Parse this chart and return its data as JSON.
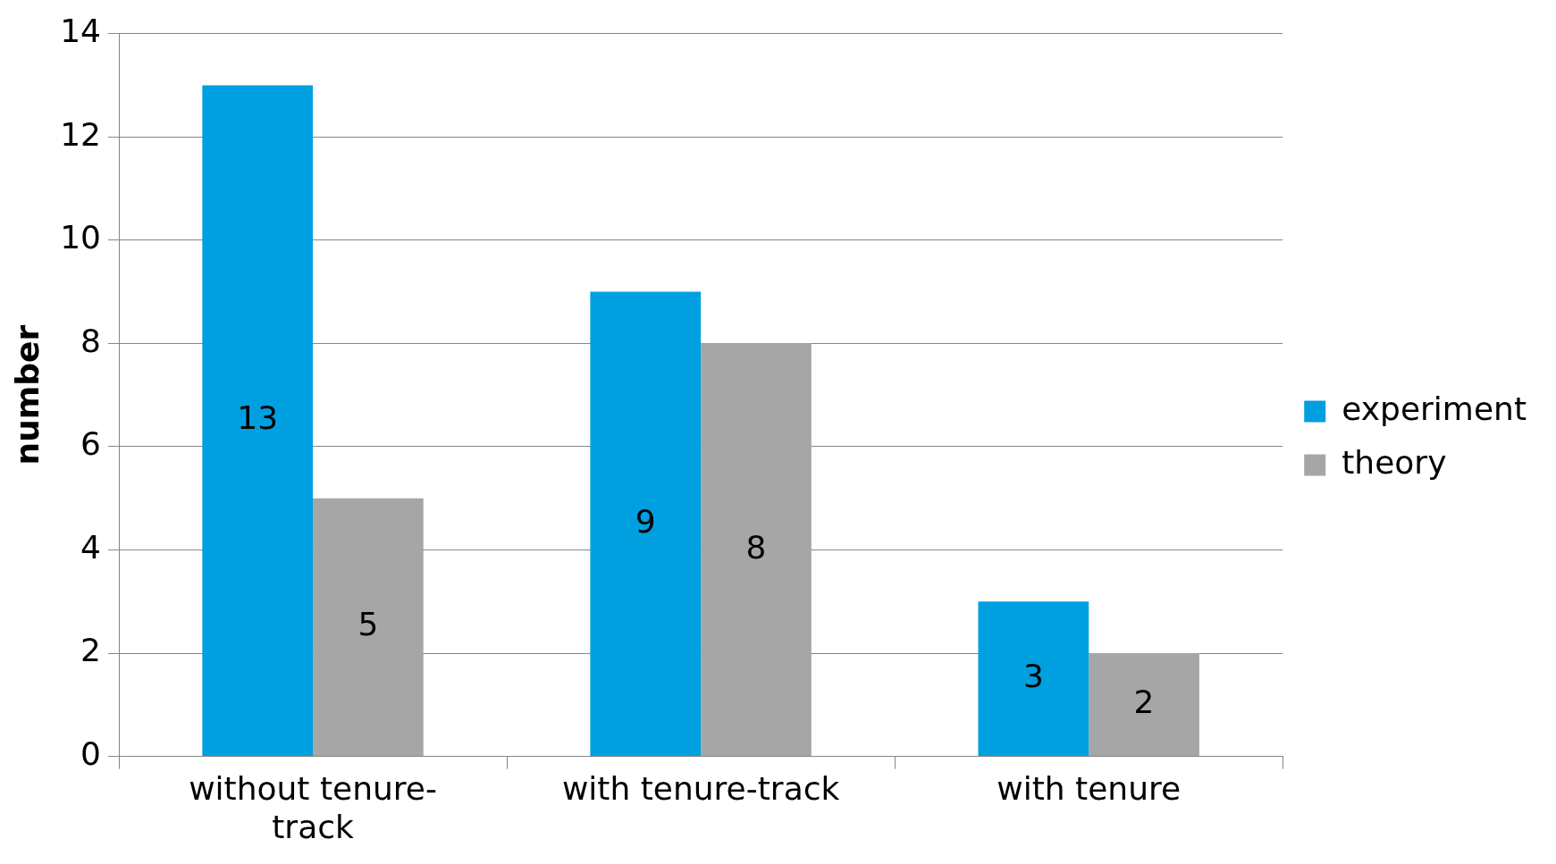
{
  "chart_data": {
    "type": "bar",
    "ylabel": "number",
    "categories": [
      "without tenure-track",
      "with tenure-track",
      "with tenure"
    ],
    "series": [
      {
        "name": "experiment",
        "color": "#009fe0",
        "values": [
          13,
          9,
          3
        ]
      },
      {
        "name": "theory",
        "color": "#a6a6a6",
        "values": [
          5,
          8,
          2
        ]
      }
    ],
    "ylim": [
      0,
      14
    ],
    "yticks": [
      0,
      2,
      4,
      6,
      8,
      10,
      12,
      14
    ],
    "grid": "y",
    "legend": "right",
    "data_labels": true
  }
}
